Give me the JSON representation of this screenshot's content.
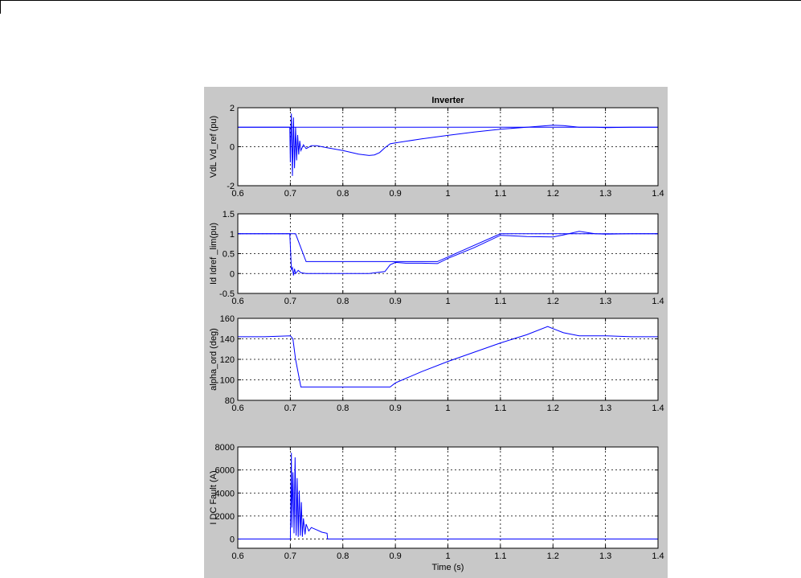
{
  "figure": {
    "background": "#c8c8c8",
    "axes_background": "#ffffff",
    "line_color": "#0000ff",
    "grid": true
  },
  "chart_data": [
    {
      "type": "line",
      "title": "Inverter",
      "xlabel": "",
      "ylabel": "VdL  Vd_ref (pu)",
      "xlim": [
        0.6,
        1.4
      ],
      "ylim": [
        -2,
        2
      ],
      "xticks": [
        "0.6",
        "0.7",
        "0.8",
        "0.9",
        "1",
        "1.1",
        "1.2",
        "1.3",
        "1.4"
      ],
      "yticks": [
        "-2",
        "0",
        "2"
      ],
      "ytick_values": [
        -2,
        0,
        2
      ],
      "series": [
        {
          "x": [
            0.6,
            0.7,
            0.7,
            1.4
          ],
          "y": [
            1,
            1,
            1,
            1
          ]
        },
        {
          "x": [
            0.6,
            0.699,
            0.7,
            0.702,
            0.704,
            0.706,
            0.708,
            0.71,
            0.712,
            0.714,
            0.716,
            0.718,
            0.72,
            0.725,
            0.73,
            0.74,
            0.75,
            0.77,
            0.8,
            0.83,
            0.85,
            0.86,
            0.87,
            0.88,
            0.89,
            0.9,
            0.95,
            1.0,
            1.05,
            1.1,
            1.15,
            1.18,
            1.2,
            1.22,
            1.25,
            1.28,
            1.3,
            1.35,
            1.4
          ],
          "y": [
            1,
            1,
            -0.8,
            1.7,
            -1.5,
            1.5,
            -1.1,
            1.0,
            -0.7,
            0.6,
            -0.4,
            0.3,
            -0.2,
            0.1,
            -0.1,
            0.05,
            0.05,
            -0.05,
            -0.2,
            -0.38,
            -0.45,
            -0.42,
            -0.3,
            -0.05,
            0.15,
            0.2,
            0.4,
            0.58,
            0.75,
            0.9,
            1.0,
            1.06,
            1.1,
            1.08,
            1.0,
            1.0,
            0.98,
            1.0,
            1.0
          ]
        }
      ]
    },
    {
      "type": "line",
      "title": "",
      "xlabel": "",
      "ylabel": "Id  Idref _lim(pu)",
      "xlim": [
        0.6,
        1.4
      ],
      "ylim": [
        -0.5,
        1.5
      ],
      "xticks": [
        "0.6",
        "0.7",
        "0.8",
        "0.9",
        "1",
        "1.1",
        "1.2",
        "1.3",
        "1.4"
      ],
      "yticks": [
        "-0.5",
        "0",
        "0.5",
        "1",
        "1.5"
      ],
      "ytick_values": [
        -0.5,
        0,
        0.5,
        1,
        1.5
      ],
      "series": [
        {
          "x": [
            0.6,
            0.71,
            0.73,
            0.89,
            0.9,
            0.98,
            1.1,
            1.2,
            1.25,
            1.3,
            1.4
          ],
          "y": [
            1,
            1,
            0.3,
            0.3,
            0.3,
            0.3,
            1,
            1,
            1,
            1,
            1
          ]
        },
        {
          "x": [
            0.6,
            0.699,
            0.7,
            0.702,
            0.704,
            0.706,
            0.708,
            0.71,
            0.715,
            0.72,
            0.73,
            0.75,
            0.8,
            0.85,
            0.88,
            0.89,
            0.9,
            0.92,
            0.95,
            0.98,
            1.0,
            1.05,
            1.1,
            1.15,
            1.2,
            1.22,
            1.25,
            1.28,
            1.3,
            1.35,
            1.4
          ],
          "y": [
            1,
            1,
            0.7,
            0.1,
            0.15,
            -0.05,
            0.12,
            0.0,
            0.08,
            0.02,
            0.0,
            0.0,
            0.0,
            0.0,
            0.05,
            0.22,
            0.28,
            0.26,
            0.26,
            0.25,
            0.38,
            0.65,
            0.96,
            0.93,
            0.92,
            0.97,
            1.06,
            1.0,
            0.99,
            1.0,
            1.0
          ]
        }
      ]
    },
    {
      "type": "line",
      "title": "",
      "xlabel": "",
      "ylabel": "alpha_ord (deg)",
      "xlim": [
        0.6,
        1.4
      ],
      "ylim": [
        80,
        160
      ],
      "xticks": [
        "0.6",
        "0.7",
        "0.8",
        "0.9",
        "1",
        "1.1",
        "1.2",
        "1.3",
        "1.4"
      ],
      "yticks": [
        "80",
        "100",
        "120",
        "140",
        "160"
      ],
      "ytick_values": [
        80,
        100,
        120,
        140,
        160
      ],
      "series": [
        {
          "x": [
            0.6,
            0.65,
            0.7,
            0.705,
            0.71,
            0.72,
            0.8,
            0.88,
            0.89,
            0.9,
            0.95,
            1.0,
            1.05,
            1.1,
            1.15,
            1.19,
            1.2,
            1.22,
            1.25,
            1.3,
            1.35,
            1.4
          ],
          "y": [
            142,
            142,
            143,
            140,
            120,
            93,
            93,
            93,
            93,
            97,
            108,
            118,
            127,
            136,
            144,
            152,
            150,
            146,
            143,
            143,
            142,
            142
          ]
        }
      ]
    },
    {
      "type": "line",
      "title": "",
      "xlabel": "Time (s)",
      "ylabel": "I DC Fault (A)",
      "xlim": [
        0.6,
        1.4
      ],
      "ylim": [
        -800,
        8000
      ],
      "xticks": [
        "0.6",
        "0.7",
        "0.8",
        "0.9",
        "1",
        "1.1",
        "1.2",
        "1.3",
        "1.4"
      ],
      "yticks": [
        "0",
        "2000",
        "4000",
        "6000",
        "8000"
      ],
      "ytick_values": [
        0,
        2000,
        4000,
        6000,
        8000
      ],
      "series": [
        {
          "x": [
            0.6,
            0.7,
            0.702,
            0.703,
            0.705,
            0.707,
            0.709,
            0.711,
            0.713,
            0.715,
            0.717,
            0.719,
            0.721,
            0.723,
            0.725,
            0.728,
            0.73,
            0.735,
            0.74,
            0.75,
            0.76,
            0.77,
            0.771,
            0.8,
            1.4
          ],
          "y": [
            0,
            0,
            7500,
            1000,
            5800,
            500,
            7100,
            300,
            5300,
            200,
            4200,
            300,
            3200,
            200,
            1800,
            400,
            1300,
            700,
            1000,
            800,
            600,
            500,
            0,
            0,
            0
          ]
        }
      ]
    }
  ]
}
